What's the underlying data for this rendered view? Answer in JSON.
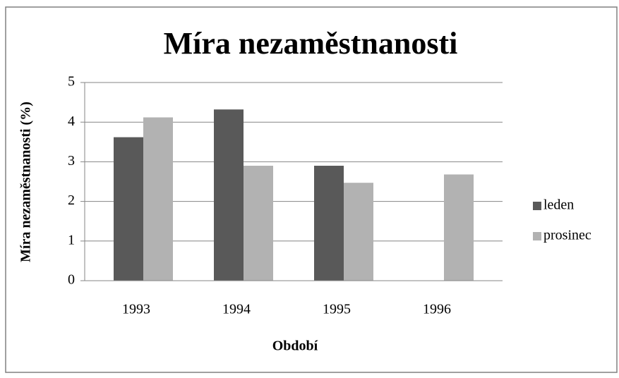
{
  "chart_data": {
    "type": "bar",
    "title": "Míra nezaměstnanosti",
    "y_label": "Míra nezaměstnanosti (%)",
    "x_label": "Období",
    "categories": [
      "1993",
      "1994",
      "1995",
      "1996"
    ],
    "series": [
      {
        "name": "leden",
        "color": "#595959",
        "values": [
          3.62,
          4.32,
          2.9,
          null
        ]
      },
      {
        "name": "prosinec",
        "color": "#b2b2b2",
        "values": [
          4.12,
          2.9,
          2.47,
          2.68
        ]
      }
    ],
    "ylim": [
      0,
      5
    ],
    "yticks": [
      0,
      1,
      2,
      3,
      4,
      5
    ],
    "grid": true,
    "legend": "right"
  }
}
